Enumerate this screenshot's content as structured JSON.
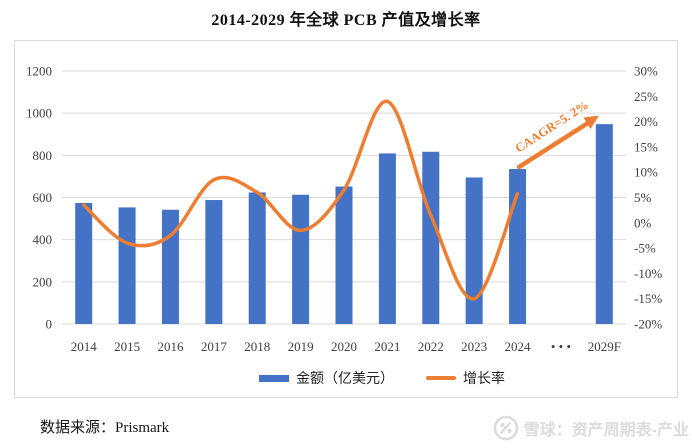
{
  "page": {
    "title": "2014-2029 年全球 PCB 产值及增长率",
    "source": "数据来源：Prismark"
  },
  "watermark": {
    "text": "雪球：资产周期表-产业",
    "icon": "xueqiu-logo-icon"
  },
  "colors": {
    "bar": "#4472C4",
    "line": "#ED7D31",
    "grid": "#d9d9d9",
    "axis_text": "#3f3f3f",
    "frame_border": "#d9d9d9",
    "watermark": "#dcdcdc"
  },
  "chart_data": {
    "type": "bar",
    "subtype": "combo-bar-line-dual-axis",
    "title": "2014-2029 年全球 PCB 产值及增长率",
    "categories": [
      "2014",
      "2015",
      "2016",
      "2017",
      "2018",
      "2019",
      "2020",
      "2021",
      "2022",
      "2023",
      "2024",
      "• • •",
      "2029F"
    ],
    "series": [
      {
        "name": "金额（亿美元）",
        "type": "bar",
        "axis": "left",
        "color": "#4472C4",
        "values": [
          574,
          553,
          542,
          588,
          624,
          613,
          652,
          809,
          817,
          695,
          735,
          null,
          948
        ]
      },
      {
        "name": "增长率",
        "type": "line",
        "axis": "right",
        "color": "#ED7D31",
        "values": [
          3.5,
          -4.0,
          -2.5,
          8.5,
          6.0,
          -1.5,
          6.5,
          24.0,
          1.5,
          -15.0,
          5.8,
          null,
          null
        ]
      }
    ],
    "left_axis": {
      "ticks": [
        0,
        200,
        400,
        600,
        800,
        1000,
        1200
      ],
      "range": [
        0,
        1200
      ]
    },
    "right_axis": {
      "tick_labels": [
        "30%",
        "25%",
        "20%",
        "15%",
        "10%",
        "5%",
        "0%",
        "-5%",
        "-10%",
        "-15%",
        "-20%"
      ],
      "tick_values": [
        30,
        25,
        20,
        15,
        10,
        5,
        0,
        -5,
        -10,
        -15,
        -20
      ],
      "range": [
        -20,
        30
      ]
    },
    "annotation": {
      "text": "CAAGR=5. 2%",
      "color": "#ED7D31"
    },
    "legend": [
      {
        "label": "金额（亿美元）",
        "color": "#4472C4",
        "shape": "bar"
      },
      {
        "label": "增长率",
        "color": "#ED7D31",
        "shape": "line"
      }
    ],
    "grid": true,
    "legend_position": "bottom"
  }
}
